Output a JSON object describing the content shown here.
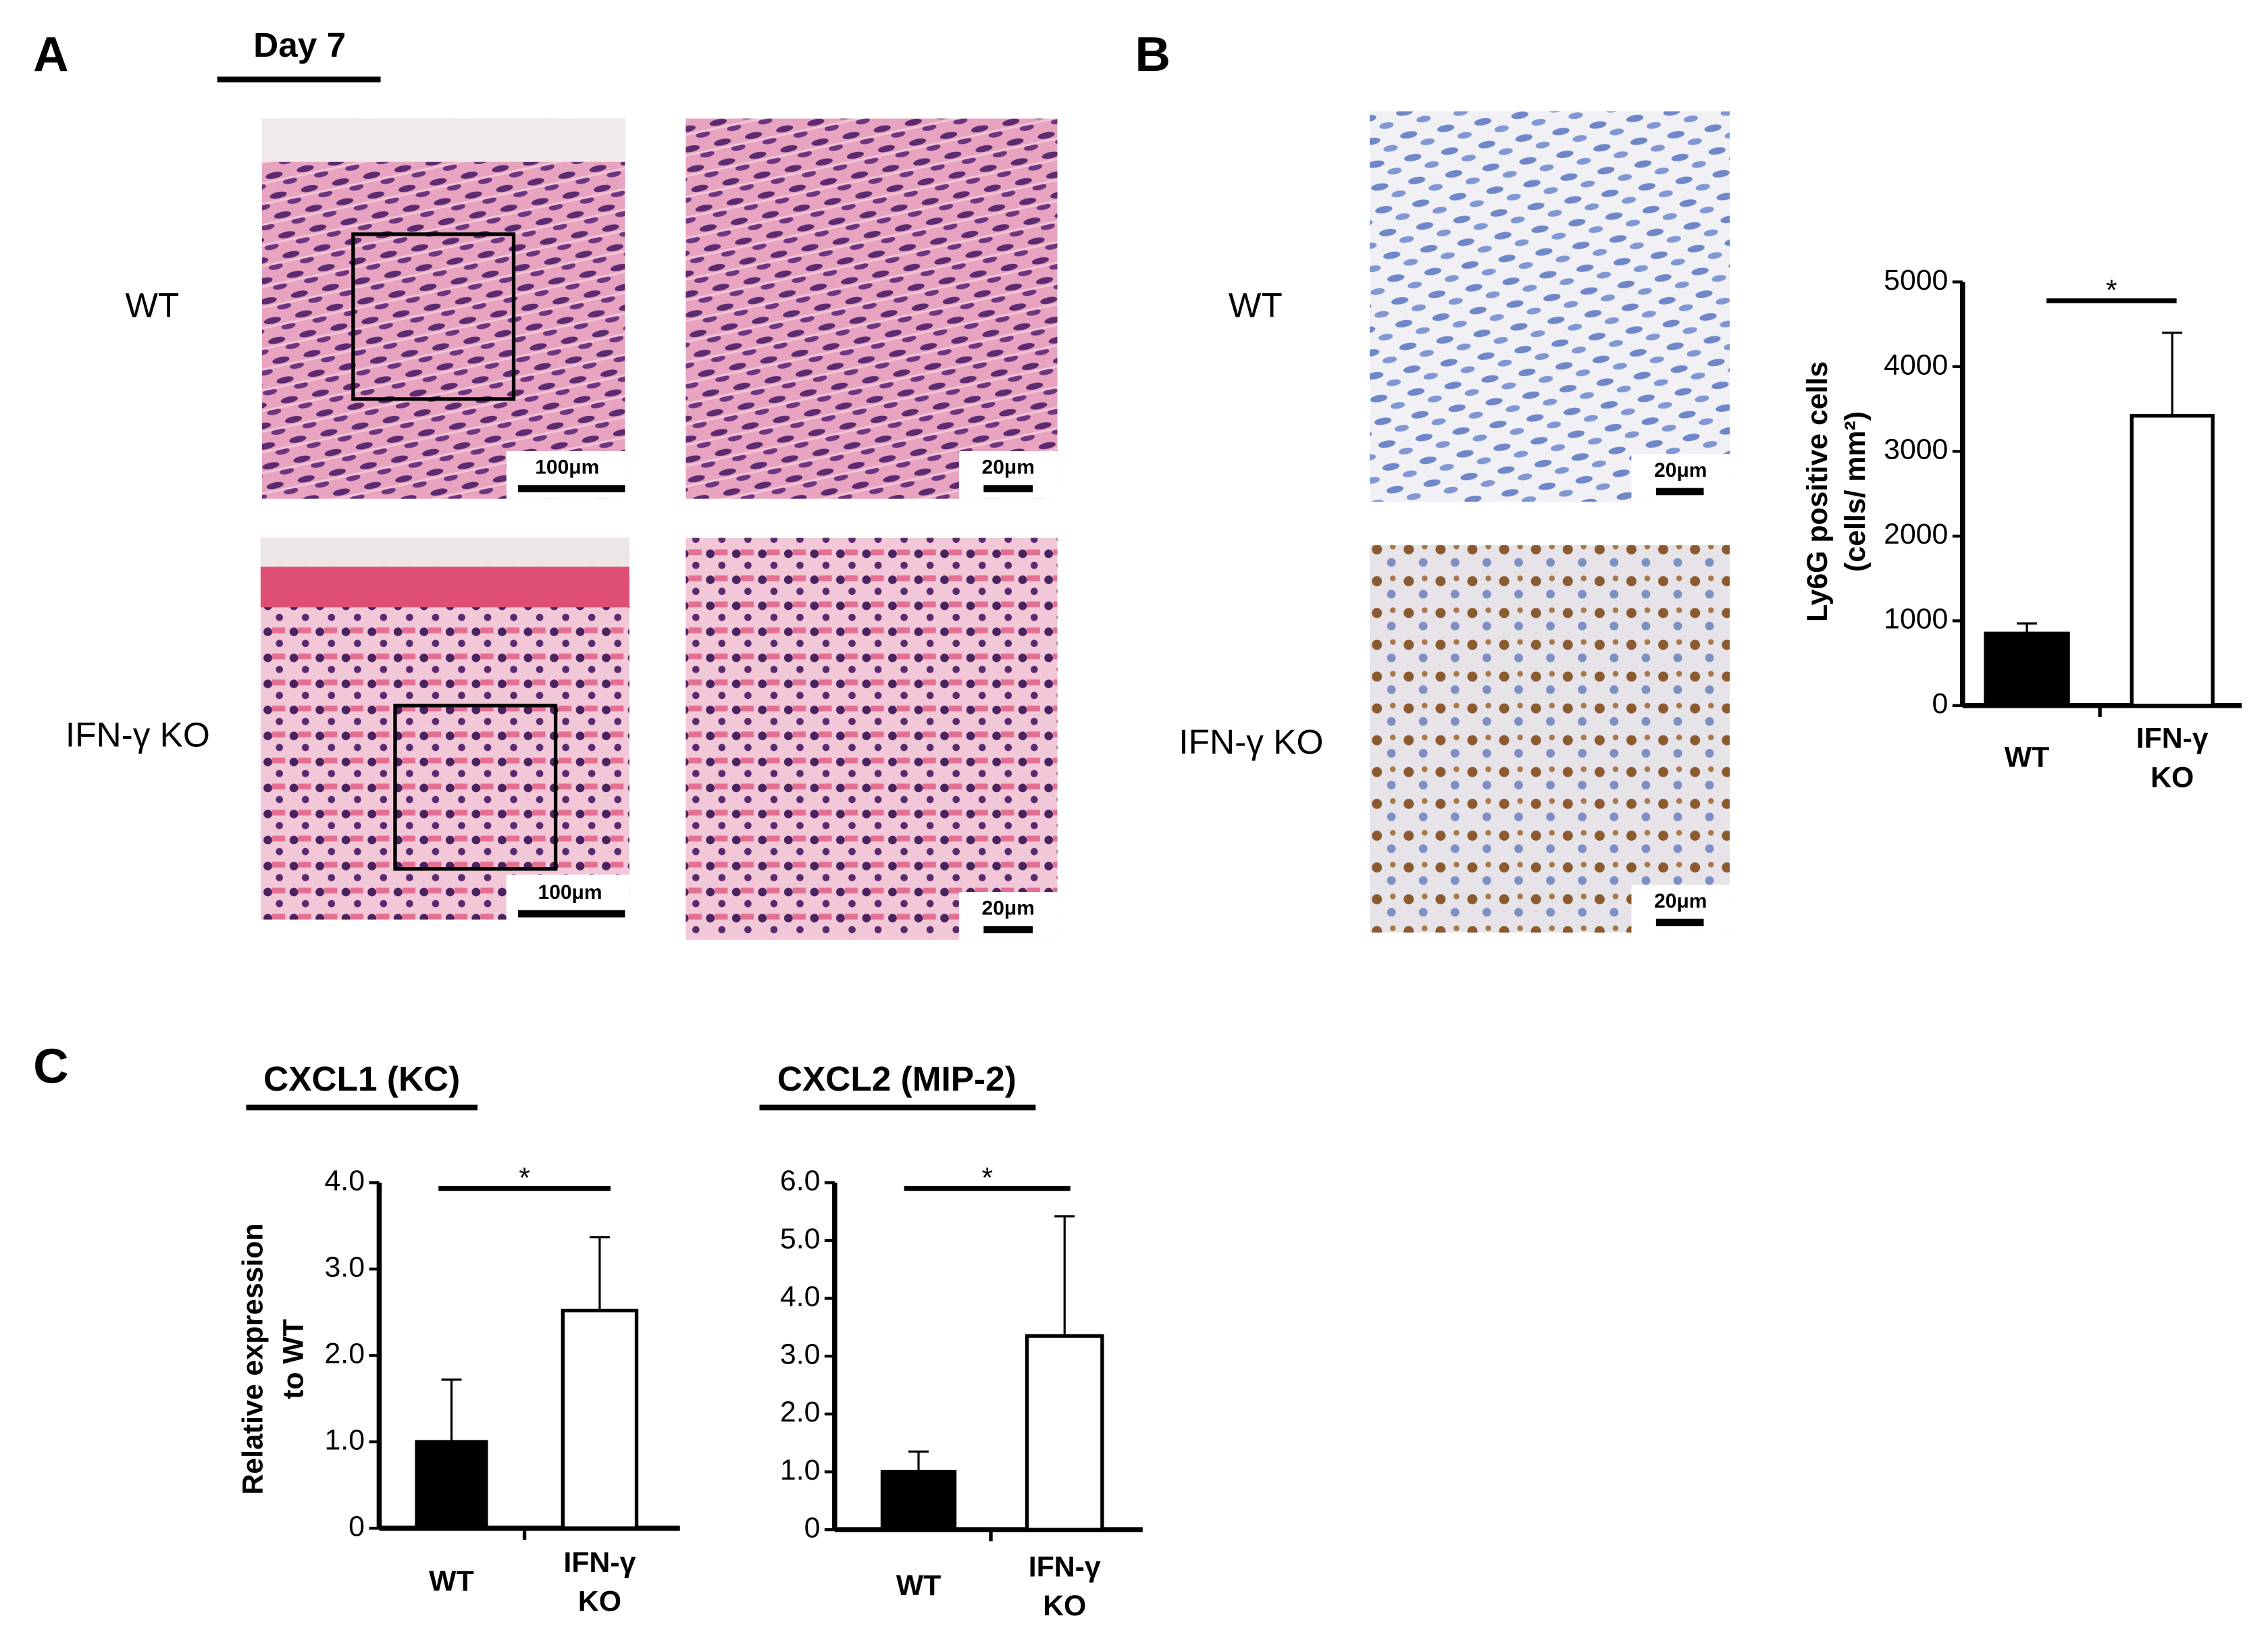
{
  "panel_a": {
    "label": "A",
    "timepoint": "Day 7",
    "rows": [
      "WT",
      "IFN-γ KO"
    ],
    "scale_bars": [
      [
        "100μm",
        "20μm"
      ],
      [
        "100μm",
        "20μm"
      ]
    ]
  },
  "panel_b": {
    "label": "B",
    "rows": [
      "WT",
      "IFN-γ KO"
    ],
    "scale_bars": [
      "20μm",
      "20μm"
    ]
  },
  "panel_c": {
    "label": "C"
  },
  "chart_data": [
    {
      "type": "bar",
      "y_label": [
        "Ly6G positive cells",
        "(cells/ mm²)"
      ],
      "categories": [
        [
          "WT"
        ],
        [
          "IFN-γ",
          "KO"
        ]
      ],
      "values": [
        850,
        3420
      ],
      "errors": [
        120,
        980
      ],
      "colors": [
        "#000000",
        "#ffffff"
      ],
      "ylim": [
        0,
        5000
      ],
      "yticks": [
        0,
        1000,
        2000,
        3000,
        4000,
        5000
      ],
      "annotation": "*"
    },
    {
      "type": "bar",
      "title": "CXCL1 (KC)",
      "y_label": [
        "Relative expression",
        "to WT"
      ],
      "categories": [
        [
          "WT"
        ],
        [
          "IFN-γ",
          "KO"
        ]
      ],
      "values": [
        1.0,
        2.52
      ],
      "errors": [
        0.72,
        0.85
      ],
      "colors": [
        "#000000",
        "#ffffff"
      ],
      "ylim": [
        0,
        4
      ],
      "yticks": [
        0,
        {
          "value": 1,
          "label": "1.0"
        },
        {
          "value": 2,
          "label": "2.0"
        },
        {
          "value": 3,
          "label": "3.0"
        },
        {
          "value": 4,
          "label": "4.0"
        }
      ],
      "annotation": "*"
    },
    {
      "type": "bar",
      "title": "CXCL2 (MIP-2)",
      "categories": [
        [
          "WT"
        ],
        [
          "IFN-γ",
          "KO"
        ]
      ],
      "values": [
        1.0,
        3.35
      ],
      "errors": [
        0.35,
        2.07
      ],
      "colors": [
        "#000000",
        "#ffffff"
      ],
      "ylim": [
        0,
        6
      ],
      "yticks": [
        0,
        {
          "value": 1,
          "label": "1.0"
        },
        {
          "value": 2,
          "label": "2.0"
        },
        {
          "value": 3,
          "label": "3.0"
        },
        {
          "value": 4,
          "label": "4.0"
        },
        {
          "value": 5,
          "label": "5.0"
        },
        {
          "value": 6,
          "label": "6.0"
        }
      ],
      "annotation": "*"
    }
  ]
}
